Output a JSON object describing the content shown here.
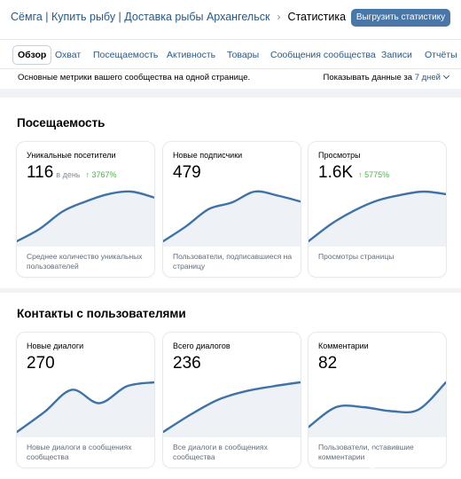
{
  "header": {
    "community": "Сёмга | Купить рыбу | Доставка рыбы Архангельск",
    "current": "Статистика",
    "export_label": "Выгрузить статистику"
  },
  "tabs": [
    {
      "label": "Обзор",
      "active": true
    },
    {
      "label": "Охват"
    },
    {
      "label": "Посещаемость"
    },
    {
      "label": "Активность"
    },
    {
      "label": "Товары"
    },
    {
      "label": "Сообщения сообщества"
    },
    {
      "label": "Записи"
    },
    {
      "label": "Отчёты"
    }
  ],
  "subbar": {
    "text": "Основные метрики вашего сообщества на одной странице.",
    "period_prefix": "Показывать данные за",
    "period_value": "7 дней"
  },
  "sections": [
    {
      "title": "Посещаемость",
      "cards": [
        {
          "title": "Уникальные посетители",
          "value": "116",
          "per_day": "в день",
          "growth": "3767%",
          "desc": "Среднее количество уникальных пользователей",
          "trend": [
            0.0,
            0.25,
            0.6,
            0.8,
            0.95,
            1.0,
            0.88
          ]
        },
        {
          "title": "Новые подписчики",
          "value": "479",
          "desc": "Пользователи, подписавшиеся на страницу",
          "trend": [
            0.0,
            0.3,
            0.65,
            0.78,
            1.0,
            0.92,
            0.8
          ]
        },
        {
          "title": "Просмотры",
          "value": "1.6K",
          "growth": "5775%",
          "desc": "Просмотры страницы",
          "trend": [
            0.0,
            0.35,
            0.62,
            0.82,
            0.93,
            1.0,
            0.95
          ]
        }
      ]
    },
    {
      "title": "Контакты с пользователями",
      "cards": [
        {
          "title": "Новые диалоги",
          "value": "270",
          "desc": "Новые диалоги в сообщениях сообщества",
          "trend": [
            0.0,
            0.4,
            0.85,
            0.58,
            0.92,
            1.0
          ]
        },
        {
          "title": "Всего диалогов",
          "value": "236",
          "desc": "Все диалоги в сообщениях сообщества",
          "trend": [
            0.0,
            0.35,
            0.65,
            0.82,
            0.92,
            1.0
          ]
        },
        {
          "title": "Комментарии",
          "value": "82",
          "desc": "Пользователи, оставившие комментарии",
          "trend": [
            0.1,
            0.5,
            0.5,
            0.42,
            0.45,
            1.0
          ]
        }
      ]
    }
  ],
  "colors": {
    "accent": "#4a76a8",
    "link": "#2a5885",
    "growth": "#4bb34b",
    "line": "#3f72a6"
  },
  "icons": {
    "breadcrumb_separator": "chevron-right-icon",
    "period_dropdown": "chevron-down-icon",
    "growth": "arrow-up-icon"
  }
}
